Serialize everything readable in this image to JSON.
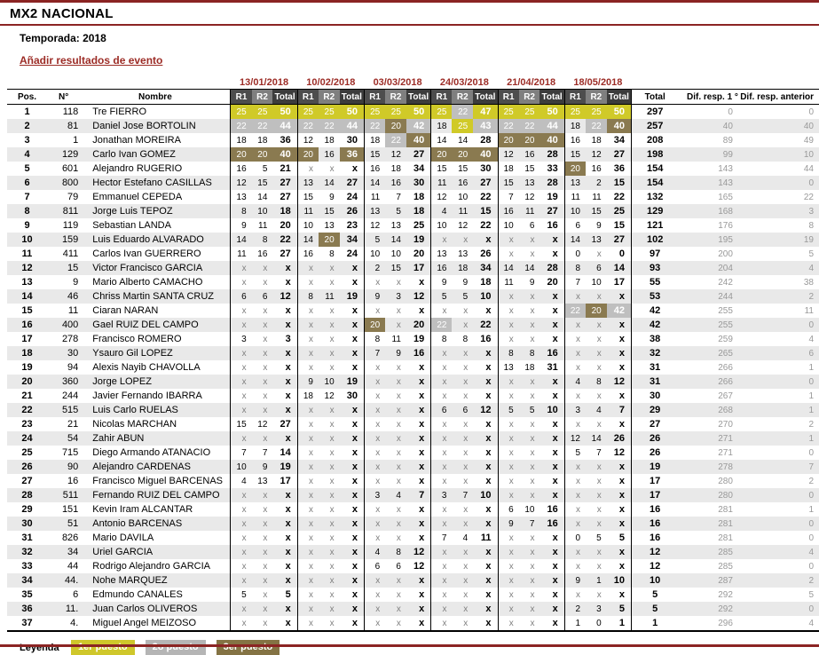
{
  "page": {
    "title": "MX2 NACIONAL",
    "season": "Temporada: 2018",
    "add_link": "Añadir resultados de evento"
  },
  "table": {
    "events": [
      "13/01/2018",
      "10/02/2018",
      "03/03/2018",
      "24/03/2018",
      "21/04/2018",
      "18/05/2018"
    ],
    "headers": {
      "pos": "Pos.",
      "num": "N°",
      "name": "Nombre",
      "r1": "R1",
      "r2": "R2",
      "event_total": "Total",
      "overall": "Total",
      "dif_first": "Dif. resp. 1 °",
      "dif_prev": "Dif. resp. anterior"
    },
    "rows": [
      {
        "pos": "1",
        "num": "118",
        "name": "Tre FIERRO",
        "cells": [
          "25:g",
          "25:g",
          "50:g",
          "25:g",
          "25:g",
          "50:g",
          "25:g",
          "25:g",
          "50:g",
          "25:g",
          "22:s",
          "47:g",
          "25:g",
          "25:g",
          "50:g",
          "25:g",
          "25:g",
          "50:g"
        ],
        "total": "297",
        "dif1": "0",
        "difa": "0"
      },
      {
        "pos": "2",
        "num": "81",
        "name": "Daniel Jose BORTOLIN",
        "cells": [
          "22:s",
          "22:s",
          "44:s",
          "22:s",
          "22:s",
          "44:s",
          "22:s",
          "20:b",
          "42:s",
          "18",
          "25:g",
          "43:s",
          "22:s",
          "22:s",
          "44:s",
          "18",
          "22:s",
          "40:b"
        ],
        "total": "257",
        "dif1": "40",
        "difa": "40"
      },
      {
        "pos": "3",
        "num": "1",
        "name": "Jonathan MOREIRA",
        "cells": [
          "18",
          "18",
          "36",
          "12",
          "18",
          "30",
          "18",
          "22:s",
          "40:b",
          "14",
          "14",
          "28",
          "20:b",
          "20:b",
          "40:b",
          "16",
          "18",
          "34"
        ],
        "total": "208",
        "dif1": "89",
        "difa": "49"
      },
      {
        "pos": "4",
        "num": "129",
        "name": "Carlo Ivan GOMEZ",
        "cells": [
          "20:b",
          "20:b",
          "40:b",
          "20:b",
          "16",
          "36:b",
          "15",
          "12",
          "27",
          "20:b",
          "20:b",
          "40:b",
          "12",
          "16",
          "28",
          "15",
          "12",
          "27"
        ],
        "total": "198",
        "dif1": "99",
        "difa": "10"
      },
      {
        "pos": "5",
        "num": "601",
        "name": "Alejandro RUGERIO",
        "cells": [
          "16",
          "5",
          "21",
          "x",
          "x",
          "x",
          "16",
          "18",
          "34",
          "15",
          "15",
          "30",
          "18",
          "15",
          "33",
          "20:b",
          "16",
          "36"
        ],
        "total": "154",
        "dif1": "143",
        "difa": "44"
      },
      {
        "pos": "6",
        "num": "800",
        "name": "Hector Estefano CASILLAS",
        "cells": [
          "12",
          "15",
          "27",
          "13",
          "14",
          "27",
          "14",
          "16",
          "30",
          "11",
          "16",
          "27",
          "15",
          "13",
          "28",
          "13",
          "2",
          "15"
        ],
        "total": "154",
        "dif1": "143",
        "difa": "0"
      },
      {
        "pos": "7",
        "num": "79",
        "name": "Emmanuel CEPEDA",
        "cells": [
          "13",
          "14",
          "27",
          "15",
          "9",
          "24",
          "11",
          "7",
          "18",
          "12",
          "10",
          "22",
          "7",
          "12",
          "19",
          "11",
          "11",
          "22"
        ],
        "total": "132",
        "dif1": "165",
        "difa": "22"
      },
      {
        "pos": "8",
        "num": "811",
        "name": "Jorge Luis TEPOZ",
        "cells": [
          "8",
          "10",
          "18",
          "11",
          "15",
          "26",
          "13",
          "5",
          "18",
          "4",
          "11",
          "15",
          "16",
          "11",
          "27",
          "10",
          "15",
          "25"
        ],
        "total": "129",
        "dif1": "168",
        "difa": "3"
      },
      {
        "pos": "9",
        "num": "119",
        "name": "Sebastian LANDA",
        "cells": [
          "9",
          "11",
          "20",
          "10",
          "13",
          "23",
          "12",
          "13",
          "25",
          "10",
          "12",
          "22",
          "10",
          "6",
          "16",
          "6",
          "9",
          "15"
        ],
        "total": "121",
        "dif1": "176",
        "difa": "8"
      },
      {
        "pos": "10",
        "num": "159",
        "name": "Luis Eduardo ALVARADO",
        "cells": [
          "14",
          "8",
          "22",
          "14",
          "20:b",
          "34",
          "5",
          "14",
          "19",
          "x",
          "x",
          "x",
          "x",
          "x",
          "x",
          "14",
          "13",
          "27"
        ],
        "total": "102",
        "dif1": "195",
        "difa": "19"
      },
      {
        "pos": "11",
        "num": "411",
        "name": "Carlos Ivan GUERRERO",
        "cells": [
          "11",
          "16",
          "27",
          "16",
          "8",
          "24",
          "10",
          "10",
          "20",
          "13",
          "13",
          "26",
          "x",
          "x",
          "x",
          "0",
          "x",
          "0"
        ],
        "total": "97",
        "dif1": "200",
        "difa": "5"
      },
      {
        "pos": "12",
        "num": "15",
        "name": "Victor Francisco GARCIA",
        "cells": [
          "x",
          "x",
          "x",
          "x",
          "x",
          "x",
          "2",
          "15",
          "17",
          "16",
          "18",
          "34",
          "14",
          "14",
          "28",
          "8",
          "6",
          "14"
        ],
        "total": "93",
        "dif1": "204",
        "difa": "4"
      },
      {
        "pos": "13",
        "num": "9",
        "name": "Mario Alberto CAMACHO",
        "cells": [
          "x",
          "x",
          "x",
          "x",
          "x",
          "x",
          "x",
          "x",
          "x",
          "9",
          "9",
          "18",
          "11",
          "9",
          "20",
          "7",
          "10",
          "17"
        ],
        "total": "55",
        "dif1": "242",
        "difa": "38"
      },
      {
        "pos": "14",
        "num": "46",
        "name": "Chriss Martin SANTA CRUZ",
        "cells": [
          "6",
          "6",
          "12",
          "8",
          "11",
          "19",
          "9",
          "3",
          "12",
          "5",
          "5",
          "10",
          "x",
          "x",
          "x",
          "x",
          "x",
          "x"
        ],
        "total": "53",
        "dif1": "244",
        "difa": "2"
      },
      {
        "pos": "15",
        "num": "11",
        "name": "Ciaran NARAN",
        "cells": [
          "x",
          "x",
          "x",
          "x",
          "x",
          "x",
          "x",
          "x",
          "x",
          "x",
          "x",
          "x",
          "x",
          "x",
          "x",
          "22:s",
          "20:b",
          "42:s"
        ],
        "total": "42",
        "dif1": "255",
        "difa": "11"
      },
      {
        "pos": "16",
        "num": "400",
        "name": "Gael RUIZ DEL CAMPO",
        "cells": [
          "x",
          "x",
          "x",
          "x",
          "x",
          "x",
          "20:b",
          "x",
          "20",
          "22:s",
          "x",
          "22",
          "x",
          "x",
          "x",
          "x",
          "x",
          "x"
        ],
        "total": "42",
        "dif1": "255",
        "difa": "0"
      },
      {
        "pos": "17",
        "num": "278",
        "name": "Francisco ROMERO",
        "cells": [
          "3",
          "x",
          "3",
          "x",
          "x",
          "x",
          "8",
          "11",
          "19",
          "8",
          "8",
          "16",
          "x",
          "x",
          "x",
          "x",
          "x",
          "x"
        ],
        "total": "38",
        "dif1": "259",
        "difa": "4"
      },
      {
        "pos": "18",
        "num": "30",
        "name": "Ysauro Gil LOPEZ",
        "cells": [
          "x",
          "x",
          "x",
          "x",
          "x",
          "x",
          "7",
          "9",
          "16",
          "x",
          "x",
          "x",
          "8",
          "8",
          "16",
          "x",
          "x",
          "x"
        ],
        "total": "32",
        "dif1": "265",
        "difa": "6"
      },
      {
        "pos": "19",
        "num": "94",
        "name": "Alexis Nayib CHAVOLLA",
        "cells": [
          "x",
          "x",
          "x",
          "x",
          "x",
          "x",
          "x",
          "x",
          "x",
          "x",
          "x",
          "x",
          "13",
          "18",
          "31",
          "x",
          "x",
          "x"
        ],
        "total": "31",
        "dif1": "266",
        "difa": "1"
      },
      {
        "pos": "20",
        "num": "360",
        "name": "Jorge LOPEZ",
        "cells": [
          "x",
          "x",
          "x",
          "9",
          "10",
          "19",
          "x",
          "x",
          "x",
          "x",
          "x",
          "x",
          "x",
          "x",
          "x",
          "4",
          "8",
          "12"
        ],
        "total": "31",
        "dif1": "266",
        "difa": "0"
      },
      {
        "pos": "21",
        "num": "244",
        "name": "Javier Fernando IBARRA",
        "cells": [
          "x",
          "x",
          "x",
          "18",
          "12",
          "30",
          "x",
          "x",
          "x",
          "x",
          "x",
          "x",
          "x",
          "x",
          "x",
          "x",
          "x",
          "x"
        ],
        "total": "30",
        "dif1": "267",
        "difa": "1"
      },
      {
        "pos": "22",
        "num": "515",
        "name": "Luis Carlo RUELAS",
        "cells": [
          "x",
          "x",
          "x",
          "x",
          "x",
          "x",
          "x",
          "x",
          "x",
          "6",
          "6",
          "12",
          "5",
          "5",
          "10",
          "3",
          "4",
          "7"
        ],
        "total": "29",
        "dif1": "268",
        "difa": "1"
      },
      {
        "pos": "23",
        "num": "21",
        "name": "Nicolas MARCHAN",
        "cells": [
          "15",
          "12",
          "27",
          "x",
          "x",
          "x",
          "x",
          "x",
          "x",
          "x",
          "x",
          "x",
          "x",
          "x",
          "x",
          "x",
          "x",
          "x"
        ],
        "total": "27",
        "dif1": "270",
        "difa": "2"
      },
      {
        "pos": "24",
        "num": "54",
        "name": "Zahir ABUN",
        "cells": [
          "x",
          "x",
          "x",
          "x",
          "x",
          "x",
          "x",
          "x",
          "x",
          "x",
          "x",
          "x",
          "x",
          "x",
          "x",
          "12",
          "14",
          "26"
        ],
        "total": "26",
        "dif1": "271",
        "difa": "1"
      },
      {
        "pos": "25",
        "num": "715",
        "name": "Diego Armando ATANACIO",
        "cells": [
          "7",
          "7",
          "14",
          "x",
          "x",
          "x",
          "x",
          "x",
          "x",
          "x",
          "x",
          "x",
          "x",
          "x",
          "x",
          "5",
          "7",
          "12"
        ],
        "total": "26",
        "dif1": "271",
        "difa": "0"
      },
      {
        "pos": "26",
        "num": "90",
        "name": "Alejandro CARDENAS",
        "cells": [
          "10",
          "9",
          "19",
          "x",
          "x",
          "x",
          "x",
          "x",
          "x",
          "x",
          "x",
          "x",
          "x",
          "x",
          "x",
          "x",
          "x",
          "x"
        ],
        "total": "19",
        "dif1": "278",
        "difa": "7"
      },
      {
        "pos": "27",
        "num": "16",
        "name": "Francisco Miguel BARCENAS",
        "cells": [
          "4",
          "13",
          "17",
          "x",
          "x",
          "x",
          "x",
          "x",
          "x",
          "x",
          "x",
          "x",
          "x",
          "x",
          "x",
          "x",
          "x",
          "x"
        ],
        "total": "17",
        "dif1": "280",
        "difa": "2"
      },
      {
        "pos": "28",
        "num": "511",
        "name": "Fernando RUIZ DEL CAMPO",
        "cells": [
          "x",
          "x",
          "x",
          "x",
          "x",
          "x",
          "3",
          "4",
          "7",
          "3",
          "7",
          "10",
          "x",
          "x",
          "x",
          "x",
          "x",
          "x"
        ],
        "total": "17",
        "dif1": "280",
        "difa": "0"
      },
      {
        "pos": "29",
        "num": "151",
        "name": "Kevin Iram ALCANTAR",
        "cells": [
          "x",
          "x",
          "x",
          "x",
          "x",
          "x",
          "x",
          "x",
          "x",
          "x",
          "x",
          "x",
          "6",
          "10",
          "16",
          "x",
          "x",
          "x"
        ],
        "total": "16",
        "dif1": "281",
        "difa": "1"
      },
      {
        "pos": "30",
        "num": "51",
        "name": "Antonio BARCENAS",
        "cells": [
          "x",
          "x",
          "x",
          "x",
          "x",
          "x",
          "x",
          "x",
          "x",
          "x",
          "x",
          "x",
          "9",
          "7",
          "16",
          "x",
          "x",
          "x"
        ],
        "total": "16",
        "dif1": "281",
        "difa": "0"
      },
      {
        "pos": "31",
        "num": "826",
        "name": "Mario DAVILA",
        "cells": [
          "x",
          "x",
          "x",
          "x",
          "x",
          "x",
          "x",
          "x",
          "x",
          "7",
          "4",
          "11",
          "x",
          "x",
          "x",
          "0",
          "5",
          "5"
        ],
        "total": "16",
        "dif1": "281",
        "difa": "0"
      },
      {
        "pos": "32",
        "num": "34",
        "name": "Uriel GARCIA",
        "cells": [
          "x",
          "x",
          "x",
          "x",
          "x",
          "x",
          "4",
          "8",
          "12",
          "x",
          "x",
          "x",
          "x",
          "x",
          "x",
          "x",
          "x",
          "x"
        ],
        "total": "12",
        "dif1": "285",
        "difa": "4"
      },
      {
        "pos": "33",
        "num": "44",
        "name": "Rodrigo Alejandro GARCIA",
        "cells": [
          "x",
          "x",
          "x",
          "x",
          "x",
          "x",
          "6",
          "6",
          "12",
          "x",
          "x",
          "x",
          "x",
          "x",
          "x",
          "x",
          "x",
          "x"
        ],
        "total": "12",
        "dif1": "285",
        "difa": "0"
      },
      {
        "pos": "34",
        "num": "44.",
        "name": "Nohe MARQUEZ",
        "cells": [
          "x",
          "x",
          "x",
          "x",
          "x",
          "x",
          "x",
          "x",
          "x",
          "x",
          "x",
          "x",
          "x",
          "x",
          "x",
          "9",
          "1",
          "10"
        ],
        "total": "10",
        "dif1": "287",
        "difa": "2"
      },
      {
        "pos": "35",
        "num": "6",
        "name": "Edmundo CANALES",
        "cells": [
          "5",
          "x",
          "5",
          "x",
          "x",
          "x",
          "x",
          "x",
          "x",
          "x",
          "x",
          "x",
          "x",
          "x",
          "x",
          "x",
          "x",
          "x"
        ],
        "total": "5",
        "dif1": "292",
        "difa": "5"
      },
      {
        "pos": "36",
        "num": "11.",
        "name": "Juan Carlos OLIVEROS",
        "cells": [
          "x",
          "x",
          "x",
          "x",
          "x",
          "x",
          "x",
          "x",
          "x",
          "x",
          "x",
          "x",
          "x",
          "x",
          "x",
          "2",
          "3",
          "5"
        ],
        "total": "5",
        "dif1": "292",
        "difa": "0"
      },
      {
        "pos": "37",
        "num": "4.",
        "name": "Miguel Angel MEIZOSO",
        "cells": [
          "x",
          "x",
          "x",
          "x",
          "x",
          "x",
          "x",
          "x",
          "x",
          "x",
          "x",
          "x",
          "x",
          "x",
          "x",
          "1",
          "0",
          "1"
        ],
        "total": "1",
        "dif1": "296",
        "difa": "4"
      }
    ]
  },
  "legend": {
    "label": "Leyenda",
    "items": [
      {
        "label": "1er puesto",
        "color": "#cfc72b"
      },
      {
        "label": "2o puesto",
        "color": "#b5b5b5"
      },
      {
        "label": "3er puesto",
        "color": "#847344"
      }
    ]
  },
  "colors": {
    "first": "#d0ca28",
    "second": "#bfbfbf",
    "third": "#8a7a50",
    "accent_red": "#9c2c26",
    "line_maroon": "#8b2423"
  }
}
